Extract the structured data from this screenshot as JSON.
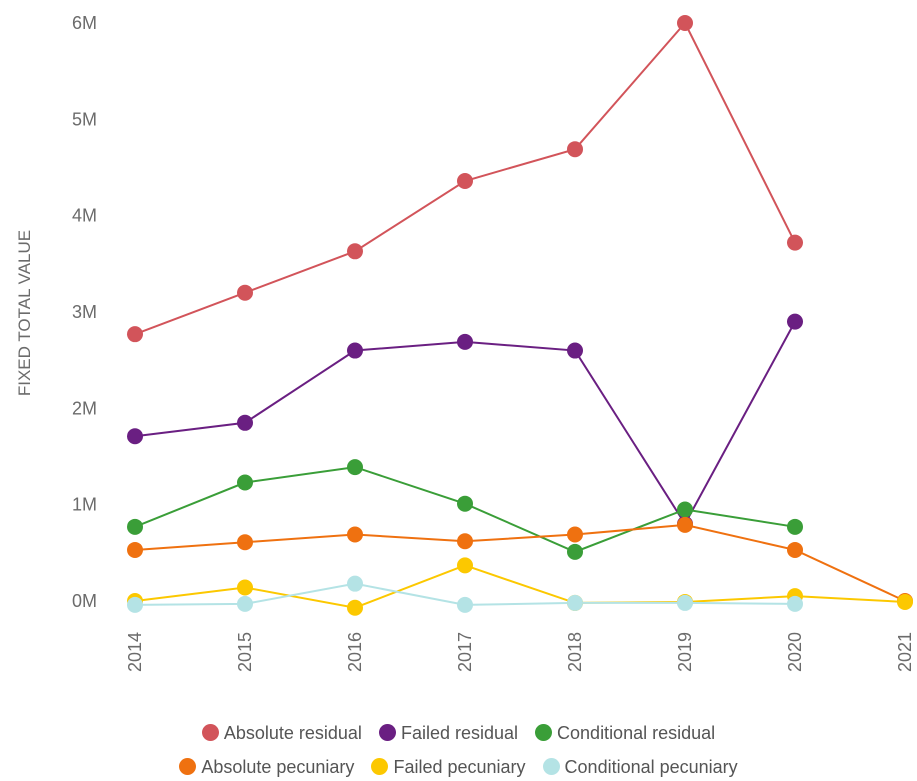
{
  "chart_data": {
    "type": "line",
    "ylabel": "FIXED TOTAL VALUE",
    "xlabel": "",
    "categories": [
      "2014",
      "2015",
      "2016",
      "2017",
      "2018",
      "2019",
      "2020",
      "2021"
    ],
    "y_ticks": [
      "0M",
      "1M",
      "2M",
      "3M",
      "4M",
      "5M",
      "6M"
    ],
    "ylim": [
      0,
      6000000
    ],
    "grid": false,
    "legend_position": "bottom",
    "series": [
      {
        "name": "Absolute residual",
        "color": "#d2545a",
        "values": [
          2770000,
          3200000,
          3630000,
          4360000,
          4690000,
          6000000,
          3720000,
          null
        ]
      },
      {
        "name": "Failed residual",
        "color": "#6a1f82",
        "values": [
          1710000,
          1850000,
          2600000,
          2690000,
          2600000,
          800000,
          2900000,
          null
        ]
      },
      {
        "name": "Conditional residual",
        "color": "#3a9e38",
        "values": [
          770000,
          1230000,
          1390000,
          1010000,
          510000,
          950000,
          770000,
          null
        ]
      },
      {
        "name": "Absolute pecuniary",
        "color": "#ef7110",
        "values": [
          530000,
          610000,
          690000,
          620000,
          690000,
          790000,
          530000,
          0
        ]
      },
      {
        "name": "Failed pecuniary",
        "color": "#fcc800",
        "values": [
          0,
          140000,
          -70000,
          370000,
          -20000,
          -10000,
          50000,
          -10000
        ]
      },
      {
        "name": "Conditional pecuniary",
        "color": "#b4e3e5",
        "values": [
          -40000,
          -30000,
          180000,
          -40000,
          -20000,
          -20000,
          -30000,
          null
        ]
      }
    ]
  }
}
